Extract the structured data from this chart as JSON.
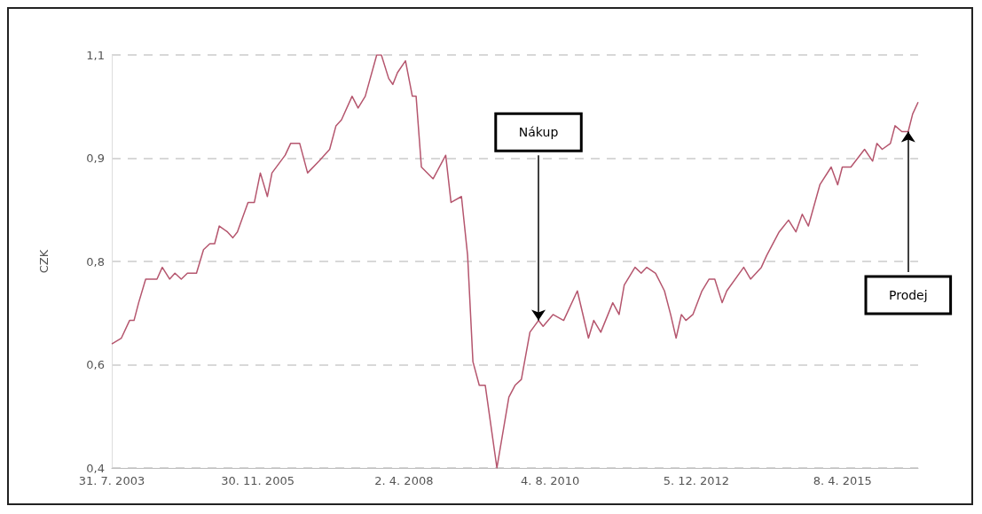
{
  "chart_data": {
    "type": "line",
    "ylabel": "CZK",
    "grid": "y",
    "color": "#b5566e",
    "x": [
      "2003-07-31",
      "2003-09-25",
      "2003-11-12",
      "2003-12-08",
      "2004-01-04",
      "2004-02-14",
      "2004-03-20",
      "2004-04-20",
      "2004-05-21",
      "2004-07-03",
      "2004-08-03",
      "2004-09-09",
      "2004-10-15",
      "2004-12-07",
      "2005-01-17",
      "2005-02-23",
      "2005-03-23",
      "2005-04-19",
      "2005-06-06",
      "2005-07-07",
      "2005-08-03",
      "2005-10-04",
      "2005-11-10",
      "2005-12-15",
      "2006-01-25",
      "2006-02-21",
      "2006-05-09",
      "2006-06-10",
      "2006-08-02",
      "2006-09-17",
      "2006-11-23",
      "2007-01-24",
      "2007-03-02",
      "2007-04-03",
      "2007-06-04",
      "2007-07-09",
      "2007-08-20",
      "2007-10-26",
      "2007-11-22",
      "2008-01-04",
      "2008-01-28",
      "2008-02-24",
      "2008-04-11",
      "2008-05-21",
      "2008-06-12",
      "2008-07-13",
      "2008-09-19",
      "2008-12-02",
      "2009-01-02",
      "2009-03-04",
      "2009-04-09",
      "2009-05-10",
      "2009-06-16",
      "2009-07-21",
      "2009-09-27",
      "2009-12-06",
      "2010-01-11",
      "2010-02-17",
      "2010-04-08",
      "2010-05-28",
      "2010-06-24",
      "2010-08-21",
      "2010-10-22",
      "2011-01-10",
      "2011-03-16",
      "2011-04-16",
      "2011-05-27",
      "2011-08-05",
      "2011-09-11",
      "2011-10-11",
      "2011-12-13",
      "2012-01-18",
      "2012-02-19",
      "2012-04-11",
      "2012-06-02",
      "2012-07-08",
      "2012-08-09",
      "2012-09-09",
      "2012-10-05",
      "2012-11-15",
      "2013-01-07",
      "2013-02-18",
      "2013-03-23",
      "2013-05-05",
      "2013-06-01",
      "2013-09-08",
      "2013-10-18",
      "2013-12-20",
      "2014-01-20",
      "2014-04-03",
      "2014-05-28",
      "2014-07-10",
      "2014-08-16",
      "2014-09-21",
      "2014-11-27",
      "2015-02-01",
      "2015-03-11",
      "2015-04-07",
      "2015-05-27",
      "2015-08-15",
      "2015-10-01",
      "2015-10-26",
      "2015-11-26",
      "2016-01-13",
      "2016-02-09",
      "2016-03-20",
      "2016-04-26",
      "2016-05-22",
      "2016-06-23"
    ],
    "values": [
      0.61,
      0.62,
      0.65,
      0.65,
      0.68,
      0.72,
      0.72,
      0.72,
      0.74,
      0.72,
      0.73,
      0.72,
      0.73,
      0.73,
      0.77,
      0.78,
      0.78,
      0.81,
      0.8,
      0.79,
      0.8,
      0.85,
      0.85,
      0.9,
      0.86,
      0.9,
      0.93,
      0.95,
      0.95,
      0.9,
      0.92,
      0.94,
      0.98,
      0.99,
      1.03,
      1.01,
      1.03,
      1.1,
      1.1,
      1.06,
      1.05,
      1.07,
      1.09,
      1.03,
      1.03,
      0.91,
      0.89,
      0.93,
      0.85,
      0.86,
      0.76,
      0.58,
      0.54,
      0.54,
      0.4,
      0.52,
      0.54,
      0.55,
      0.63,
      0.65,
      0.64,
      0.66,
      0.65,
      0.7,
      0.62,
      0.65,
      0.63,
      0.68,
      0.66,
      0.71,
      0.74,
      0.73,
      0.74,
      0.73,
      0.7,
      0.66,
      0.62,
      0.66,
      0.65,
      0.66,
      0.7,
      0.72,
      0.72,
      0.68,
      0.7,
      0.74,
      0.72,
      0.74,
      0.76,
      0.8,
      0.82,
      0.8,
      0.83,
      0.81,
      0.88,
      0.91,
      0.88,
      0.91,
      0.91,
      0.94,
      0.92,
      0.95,
      0.94,
      0.95,
      0.98,
      0.97,
      0.97,
      1.0,
      1.02
    ],
    "xlim": [
      "2003-07-31",
      "2016-06-23"
    ],
    "xticks": [
      {
        "value": "2003-07-31",
        "label": "31. 7. 2003"
      },
      {
        "value": "2005-11-30",
        "label": "30. 11. 2005"
      },
      {
        "value": "2008-04-02",
        "label": "2. 4. 2008"
      },
      {
        "value": "2010-08-04",
        "label": "4. 8. 2010"
      },
      {
        "value": "2012-12-05",
        "label": "5. 12. 2012"
      },
      {
        "value": "2015-04-08",
        "label": "8. 4. 2015"
      }
    ],
    "ylim": [
      0.4,
      1.1
    ],
    "yticks": [
      {
        "value": 0.4,
        "label": "0,4"
      },
      {
        "value": 0.575,
        "label": "0,6"
      },
      {
        "value": 0.75,
        "label": "0,8"
      },
      {
        "value": 0.925,
        "label": "0,9"
      },
      {
        "value": 1.1,
        "label": "1,1"
      }
    ],
    "annotations": [
      {
        "text": "Nákup",
        "x": "2010-05-28",
        "y": 0.65
      },
      {
        "text": "Prodej",
        "x": "2016-04-26",
        "y": 0.97
      }
    ]
  }
}
